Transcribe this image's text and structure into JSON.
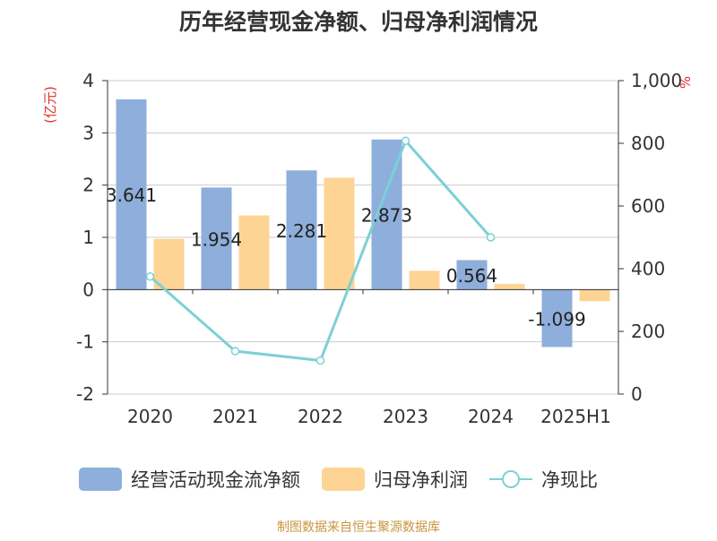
{
  "chart_data": {
    "type": "bar",
    "title": "历年经营现金净额、归母净利润情况",
    "categories": [
      "2020",
      "2021",
      "2022",
      "2023",
      "2024",
      "2025H1"
    ],
    "series": [
      {
        "name": "经营活动现金流净额",
        "type": "bar",
        "axis": "left",
        "color": "#8eaedb",
        "values": [
          3.641,
          1.954,
          2.281,
          2.873,
          0.564,
          -1.099
        ]
      },
      {
        "name": "归母净利润",
        "type": "bar",
        "axis": "left",
        "color": "#fdd494",
        "values": [
          0.97,
          1.42,
          2.14,
          0.36,
          0.11,
          -0.22
        ]
      },
      {
        "name": "净现比",
        "type": "line",
        "axis": "right",
        "color": "#7dd0d4",
        "values": [
          375,
          137,
          107,
          808,
          500,
          null
        ]
      }
    ],
    "data_labels": [
      "3.641",
      "1.954",
      "2.281",
      "2.873",
      "0.564",
      "-1.099"
    ],
    "y_left": {
      "label": "(亿元)",
      "min": -2,
      "max": 4,
      "ticks": [
        "4",
        "3",
        "2",
        "1",
        "0",
        "-1",
        "-2"
      ]
    },
    "y_right": {
      "label": "%",
      "min": 0,
      "max": 1000,
      "ticks": [
        "1,000",
        "800",
        "600",
        "400",
        "200",
        "0"
      ]
    },
    "grid": true,
    "legend_position": "bottom"
  },
  "footer": {
    "source": "制图数据来自恒生聚源数据库"
  }
}
